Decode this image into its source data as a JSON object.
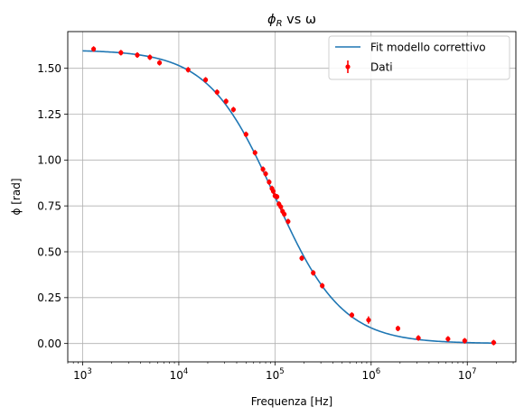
{
  "chart_data": {
    "type": "scatter",
    "title": "ϕ_R vs ω",
    "title_parts": {
      "main": "ϕ",
      "sub": "R",
      "rest": " vs ω"
    },
    "xlabel": "Frequenza [Hz]",
    "ylabel": "ϕ [rad]",
    "x_scale": "log",
    "xlim": [
      700,
      32000000
    ],
    "ylim": [
      -0.1,
      1.7
    ],
    "x_ticks": [
      {
        "value": 1000,
        "base": "10",
        "exp": "3"
      },
      {
        "value": 10000,
        "base": "10",
        "exp": "4"
      },
      {
        "value": 100000,
        "base": "10",
        "exp": "5"
      },
      {
        "value": 1000000,
        "base": "10",
        "exp": "6"
      },
      {
        "value": 10000000,
        "base": "10",
        "exp": "7"
      }
    ],
    "y_ticks": [
      {
        "value": 0.0,
        "label": "0.00"
      },
      {
        "value": 0.25,
        "label": "0.25"
      },
      {
        "value": 0.5,
        "label": "0.50"
      },
      {
        "value": 0.75,
        "label": "0.75"
      },
      {
        "value": 1.0,
        "label": "1.00"
      },
      {
        "value": 1.25,
        "label": "1.25"
      },
      {
        "value": 1.5,
        "label": "1.50"
      }
    ],
    "grid": true,
    "legend_position": "top-right",
    "series": [
      {
        "name": "Fit modello correttivo",
        "kind": "line",
        "color": "#1f77b4",
        "model": {
          "f0": 100000,
          "order": 1.25,
          "amplitude": 1.6
        }
      },
      {
        "name": "Dati",
        "kind": "errorbar",
        "color": "#ff0000",
        "points": [
          {
            "x": 1300,
            "y": 1.605,
            "err": 0.015
          },
          {
            "x": 2500,
            "y": 1.585,
            "err": 0.015
          },
          {
            "x": 3700,
            "y": 1.572,
            "err": 0.015
          },
          {
            "x": 5000,
            "y": 1.56,
            "err": 0.015
          },
          {
            "x": 6300,
            "y": 1.53,
            "err": 0.015
          },
          {
            "x": 12500,
            "y": 1.492,
            "err": 0.015
          },
          {
            "x": 19000,
            "y": 1.437,
            "err": 0.015
          },
          {
            "x": 25000,
            "y": 1.37,
            "err": 0.015
          },
          {
            "x": 31000,
            "y": 1.32,
            "err": 0.015
          },
          {
            "x": 37000,
            "y": 1.275,
            "err": 0.015
          },
          {
            "x": 50000,
            "y": 1.14,
            "err": 0.015
          },
          {
            "x": 62000,
            "y": 1.04,
            "err": 0.015
          },
          {
            "x": 75000,
            "y": 0.95,
            "err": 0.015
          },
          {
            "x": 80000,
            "y": 0.925,
            "err": 0.015
          },
          {
            "x": 87000,
            "y": 0.88,
            "err": 0.015
          },
          {
            "x": 93000,
            "y": 0.845,
            "err": 0.015
          },
          {
            "x": 96000,
            "y": 0.83,
            "err": 0.015
          },
          {
            "x": 100000,
            "y": 0.805,
            "err": 0.015
          },
          {
            "x": 105000,
            "y": 0.8,
            "err": 0.015
          },
          {
            "x": 110000,
            "y": 0.76,
            "err": 0.015
          },
          {
            "x": 115000,
            "y": 0.745,
            "err": 0.015
          },
          {
            "x": 120000,
            "y": 0.72,
            "err": 0.015
          },
          {
            "x": 125000,
            "y": 0.705,
            "err": 0.015
          },
          {
            "x": 137000,
            "y": 0.665,
            "err": 0.015
          },
          {
            "x": 190000,
            "y": 0.465,
            "err": 0.015
          },
          {
            "x": 250000,
            "y": 0.385,
            "err": 0.015
          },
          {
            "x": 310000,
            "y": 0.315,
            "err": 0.015
          },
          {
            "x": 630000,
            "y": 0.155,
            "err": 0.015
          },
          {
            "x": 940000,
            "y": 0.128,
            "err": 0.02
          },
          {
            "x": 1900000,
            "y": 0.082,
            "err": 0.015
          },
          {
            "x": 3100000,
            "y": 0.03,
            "err": 0.015
          },
          {
            "x": 6300000,
            "y": 0.025,
            "err": 0.015
          },
          {
            "x": 9400000,
            "y": 0.015,
            "err": 0.015
          },
          {
            "x": 18800000,
            "y": 0.005,
            "err": 0.015
          }
        ]
      }
    ]
  }
}
